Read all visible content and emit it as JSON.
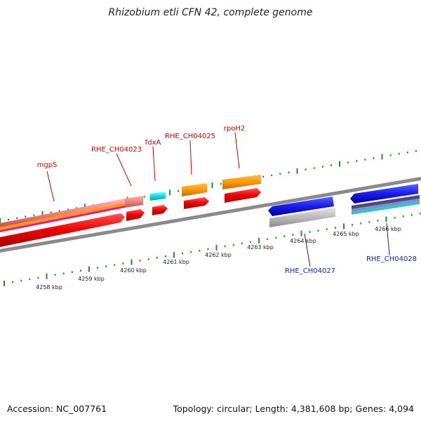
{
  "title": "Rhizobium etli CFN 42, complete genome",
  "accession_text": "Accession: NC_007761",
  "topology_text": "Topology: circular; Length: 4,381,608 bp; Genes: 4,094",
  "kbp_labels": [
    "4258 kbp",
    "4259 kbp",
    "4260 kbp",
    "4261 kbp",
    "4262 kbp",
    "4263 kbp",
    "4264 kbp",
    "4265 kbp",
    "4266 kbp"
  ],
  "gene_labels": {
    "mgpS": "mgpS",
    "rhe_ch04023": "RHE_CH04023",
    "fdxA": "fdxA",
    "rhe_ch04025": "RHE_CH04025",
    "rpoH2": "rpoH2",
    "rhe_ch04027": "RHE_CH04027",
    "rhe_ch04028": "RHE_CH04028"
  },
  "colors": {
    "forward_label": "#cc0000",
    "reverse_label": "#1a1aa8",
    "backbone": "#8a8a8a",
    "tick": "#2a8a2a",
    "cds": "#ee0000",
    "gene_orange": "#ff9900",
    "gene_cyan": "#00e5e5",
    "gene_blue": "#1a1aee",
    "gene_pink": "#f08080",
    "gene_grey": "#bbbbbb"
  }
}
